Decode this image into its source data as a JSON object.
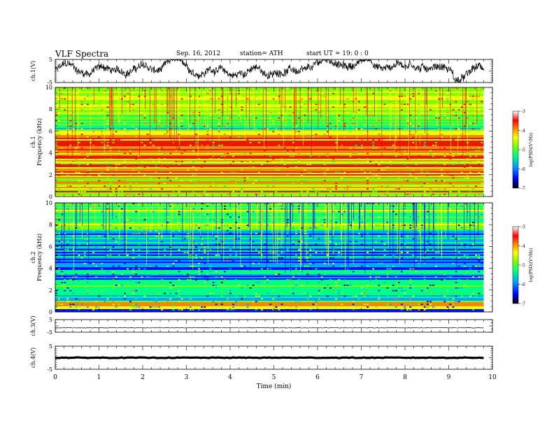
{
  "header": {
    "title": "VLF  Spectra",
    "date": "Sep. 16,  2012",
    "station": "station= ATH",
    "start_ut": "start  UT  =   19: 0  : 0"
  },
  "chart_data": [
    {
      "type": "line",
      "panel": "ch1-waveform",
      "ylabel": "ch.1(V)",
      "ylim": [
        -5,
        5
      ],
      "y_ticks": [
        "5",
        "-5"
      ],
      "xlim": [
        0,
        10
      ],
      "series": [
        {
          "color": "#000000"
        }
      ]
    },
    {
      "type": "heatmap",
      "panel": "ch1-spectrogram",
      "ylabel_lines": [
        "ch.1",
        "Frequency  (kHz)"
      ],
      "ylim": [
        0,
        10
      ],
      "y_ticks": [
        "0",
        "2",
        "4",
        "6",
        "8",
        "10"
      ],
      "xlim": [
        0,
        10
      ],
      "x_extent_min": 9.8,
      "colorbar": {
        "label": "log(PSD)(V²/Hz)",
        "range": [
          -7,
          -3
        ],
        "ticks": [
          "-3",
          "-4",
          "-5",
          "-6",
          "-7"
        ]
      }
    },
    {
      "type": "heatmap",
      "panel": "ch2-spectrogram",
      "ylabel_lines": [
        "ch.2",
        "Frequency  (kHz)"
      ],
      "ylim": [
        0,
        10
      ],
      "y_ticks": [
        "0",
        "2",
        "4",
        "6",
        "8",
        "10"
      ],
      "xlim": [
        0,
        10
      ],
      "x_extent_min": 9.8,
      "colorbar": {
        "label": "log(PSD)(V²/Hz)",
        "range": [
          -7,
          -3
        ],
        "ticks": [
          "-3",
          "-4",
          "-5",
          "-6",
          "-7"
        ]
      }
    },
    {
      "type": "line",
      "panel": "ch3-waveform",
      "ylabel": "ch.3(V)",
      "ylim": [
        -5,
        5
      ],
      "y_ticks": [
        "5",
        "-5"
      ],
      "xlim": [
        0,
        10
      ],
      "series": [
        {
          "color": "#000000"
        }
      ]
    },
    {
      "type": "line",
      "panel": "ch4-waveform",
      "ylabel": "ch.4(V)",
      "ylim": [
        -5,
        5
      ],
      "y_ticks": [
        "5",
        "-5"
      ],
      "xlim": [
        0,
        10
      ],
      "series": [
        {
          "color": "#000000"
        }
      ]
    }
  ],
  "x_axis": {
    "label": "Time  (min)",
    "range": [
      0,
      10
    ],
    "ticks": [
      "0",
      "1",
      "2",
      "3",
      "4",
      "5",
      "6",
      "7",
      "8",
      "9",
      "10"
    ]
  },
  "colors": {
    "psd_scale": [
      "#000000",
      "#0000ff",
      "#00a0ff",
      "#00ff80",
      "#80ff00",
      "#ffff00",
      "#ff8000",
      "#ff0000",
      "#ffffff"
    ]
  }
}
